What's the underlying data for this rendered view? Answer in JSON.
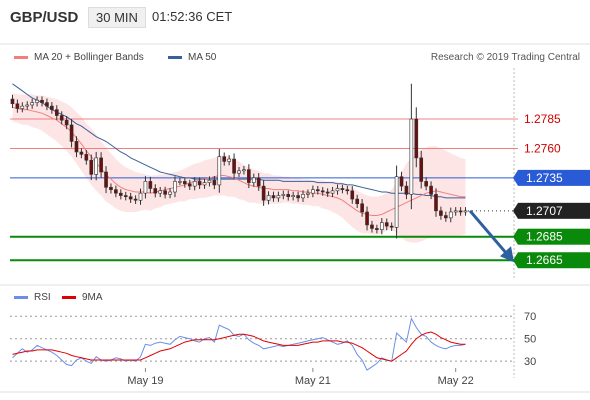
{
  "header": {
    "symbol": "GBP/USD",
    "timeframe": "30 MIN",
    "time": "01:52:36 CET"
  },
  "credit": "Research © 2019 Trading Central",
  "colors": {
    "ma20": "#f08080",
    "ma50": "#3a5f9a",
    "bollinger": "#fde0e0",
    "resistance": "#f08080",
    "pivot": "#2a5bd7",
    "support": "#0a8a0a",
    "rsi": "#6a8fe8",
    "rsi_ma": "#e00000",
    "candle_up": "#ffffff",
    "candle_down": "#6b0f0f"
  },
  "chart_data": [
    {
      "type": "candlestick",
      "legend": [
        {
          "name": "MA 20 + Bollinger Bands",
          "color": "#f08080"
        },
        {
          "name": "MA 50",
          "color": "#3a5f9a"
        }
      ],
      "ylim": [
        1.2655,
        1.2825
      ],
      "x_ticks": [
        "May 19",
        "May 21",
        "May 22"
      ],
      "x_tick_index": [
        27,
        61,
        90
      ],
      "levels": [
        {
          "label": "1.2785",
          "value": 1.2785,
          "kind": "resistance"
        },
        {
          "label": "1.2760",
          "value": 1.276,
          "kind": "resistance"
        },
        {
          "label": "1.2735",
          "value": 1.2735,
          "kind": "pivot"
        },
        {
          "label": "1.2707",
          "value": 1.2707,
          "kind": "last"
        },
        {
          "label": "1.2685",
          "value": 1.2685,
          "kind": "support"
        },
        {
          "label": "1.2665",
          "value": 1.2665,
          "kind": "support"
        }
      ],
      "close": [
        1.2798,
        1.2794,
        1.2796,
        1.2797,
        1.2799,
        1.2801,
        1.2799,
        1.2796,
        1.2793,
        1.2788,
        1.2784,
        1.278,
        1.2766,
        1.2757,
        1.2755,
        1.275,
        1.2738,
        1.2752,
        1.274,
        1.2727,
        1.2725,
        1.2722,
        1.272,
        1.2719,
        1.2717,
        1.2716,
        1.2722,
        1.2732,
        1.2726,
        1.2722,
        1.2724,
        1.2721,
        1.2723,
        1.2732,
        1.2732,
        1.273,
        1.2728,
        1.2732,
        1.2729,
        1.2731,
        1.2733,
        1.2729,
        1.2753,
        1.2749,
        1.2751,
        1.2739,
        1.2741,
        1.2742,
        1.2731,
        1.2735,
        1.2728,
        1.2716,
        1.272,
        1.2718,
        1.272,
        1.2721,
        1.2719,
        1.272,
        1.2718,
        1.2721,
        1.2722,
        1.2725,
        1.2724,
        1.2723,
        1.2722,
        1.2724,
        1.2726,
        1.2725,
        1.2724,
        1.2717,
        1.2713,
        1.2706,
        1.2695,
        1.2692,
        1.2691,
        1.2697,
        1.2694,
        1.2693,
        1.2736,
        1.2728,
        1.2721,
        1.2785,
        1.2752,
        1.2732,
        1.2728,
        1.2721,
        1.2707,
        1.2703,
        1.2701,
        1.2706,
        1.2707,
        1.2706,
        1.2707
      ],
      "ma20": [
        1.2795,
        1.2794,
        1.2793,
        1.2793,
        1.2792,
        1.2791,
        1.279,
        1.2788,
        1.2786,
        1.2784,
        1.2781,
        1.2778,
        1.2774,
        1.2769,
        1.2764,
        1.2758,
        1.2753,
        1.2748,
        1.2743,
        1.2738,
        1.2734,
        1.273,
        1.2727,
        1.2725,
        1.2724,
        1.2723,
        1.2723,
        1.2723,
        1.2722,
        1.2723,
        1.2724,
        1.2725,
        1.2726,
        1.2727,
        1.2728,
        1.2729,
        1.2731,
        1.2732,
        1.2733,
        1.2734,
        1.2735,
        1.2736,
        1.2737,
        1.2737,
        1.2736,
        1.2735,
        1.2733,
        1.2731,
        1.2729,
        1.2728,
        1.2727,
        1.2726,
        1.2726,
        1.2725,
        1.2725,
        1.2725,
        1.2725,
        1.2724,
        1.2724,
        1.2723,
        1.2723,
        1.2722,
        1.2722,
        1.2721,
        1.272,
        1.2719,
        1.2718,
        1.2716,
        1.2713,
        1.271,
        1.2707,
        1.2705,
        1.2704,
        1.2703,
        1.2703,
        1.2704,
        1.2706,
        1.2708,
        1.271,
        1.2712,
        1.2714,
        1.2716,
        1.2718,
        1.272,
        1.2722,
        1.2723,
        1.2724,
        1.2723,
        1.2722,
        1.2721,
        1.272,
        1.2719,
        1.2719
      ],
      "ma50": [
        1.2815,
        1.2812,
        1.2809,
        1.2806,
        1.2803,
        1.2801,
        1.2799,
        1.2796,
        1.2793,
        1.2791,
        1.2789,
        1.2787,
        1.2784,
        1.2781,
        1.2779,
        1.2776,
        1.2773,
        1.277,
        1.2768,
        1.2766,
        1.2763,
        1.276,
        1.2757,
        1.2755,
        1.2752,
        1.275,
        1.2748,
        1.2746,
        1.2744,
        1.2742,
        1.274,
        1.2739,
        1.2738,
        1.2737,
        1.2736,
        1.2735,
        1.2735,
        1.2734,
        1.2734,
        1.2734,
        1.2734,
        1.2734,
        1.2734,
        1.2734,
        1.2734,
        1.2734,
        1.2734,
        1.2734,
        1.2734,
        1.2734,
        1.2734,
        1.2733,
        1.2733,
        1.2733,
        1.2733,
        1.2732,
        1.2732,
        1.2732,
        1.2732,
        1.2732,
        1.2732,
        1.2732,
        1.2731,
        1.2731,
        1.2731,
        1.2731,
        1.273,
        1.273,
        1.2729,
        1.2729,
        1.2728,
        1.2727,
        1.2726,
        1.2725,
        1.2724,
        1.2723,
        1.2723,
        1.2722,
        1.2722,
        1.2722,
        1.2722,
        1.2722,
        1.2721,
        1.2721,
        1.272,
        1.272,
        1.2719,
        1.2719,
        1.2718,
        1.2718,
        1.2718,
        1.2718,
        1.2718
      ],
      "bb_width": [
        0.0012,
        0.0012,
        0.0013,
        0.0013,
        0.0014,
        0.0014,
        0.0015,
        0.0016,
        0.0017,
        0.0018,
        0.0019,
        0.002,
        0.0021,
        0.0022,
        0.0023,
        0.0023,
        0.0024,
        0.0024,
        0.0023,
        0.0023,
        0.0022,
        0.0021,
        0.002,
        0.0019,
        0.0018,
        0.0017,
        0.0016,
        0.0015,
        0.0015,
        0.0014,
        0.0014,
        0.0013,
        0.0013,
        0.0013,
        0.0013,
        0.0014,
        0.0014,
        0.0015,
        0.0015,
        0.0016,
        0.0016,
        0.0016,
        0.0017,
        0.0017,
        0.0017,
        0.0016,
        0.0016,
        0.0015,
        0.0015,
        0.0014,
        0.0014,
        0.0013,
        0.0013,
        0.0012,
        0.0012,
        0.0011,
        0.0011,
        0.0011,
        0.0011,
        0.0011,
        0.0011,
        0.0011,
        0.0011,
        0.0012,
        0.0012,
        0.0013,
        0.0014,
        0.0015,
        0.0016,
        0.0017,
        0.0017,
        0.0017,
        0.0016,
        0.0016,
        0.0016,
        0.0016,
        0.0016,
        0.0017,
        0.0022,
        0.0028,
        0.0033,
        0.0036,
        0.0038,
        0.0039,
        0.0039,
        0.0039,
        0.0038,
        0.0037,
        0.0036,
        0.0035,
        0.0034,
        0.0033,
        0.0032
      ],
      "forecast_arrow": {
        "from": 1.2707,
        "to": 1.2665
      }
    },
    {
      "type": "line",
      "legend": [
        {
          "name": "RSI",
          "color": "#6a8fe8"
        },
        {
          "name": "9MA",
          "color": "#e00000"
        }
      ],
      "ylim": [
        15,
        80
      ],
      "y_ticks": [
        70,
        50,
        30
      ],
      "series": [
        {
          "name": "RSI",
          "values": [
            33,
            37,
            41,
            38,
            40,
            44,
            42,
            40,
            38,
            35,
            31,
            27,
            26,
            31,
            33,
            30,
            28,
            34,
            31,
            30,
            31,
            33,
            32,
            30,
            31,
            30,
            34,
            45,
            44,
            46,
            47,
            46,
            45,
            49,
            52,
            51,
            50,
            48,
            47,
            50,
            51,
            47,
            62,
            60,
            58,
            53,
            52,
            54,
            49,
            46,
            44,
            41,
            42,
            43,
            44,
            43,
            44,
            45,
            46,
            47,
            48,
            49,
            50,
            51,
            49,
            47,
            45,
            46,
            48,
            44,
            36,
            31,
            22,
            25,
            28,
            33,
            31,
            30,
            55,
            51,
            47,
            68,
            60,
            54,
            52,
            47,
            44,
            42,
            41,
            43,
            44,
            44,
            45
          ]
        },
        {
          "name": "9MA",
          "values": [
            36,
            37,
            38,
            39,
            39,
            40,
            40,
            40,
            40,
            39,
            38,
            37,
            35,
            34,
            33,
            32,
            31,
            31,
            31,
            31,
            31,
            31,
            31,
            31,
            31,
            31,
            31,
            33,
            35,
            37,
            39,
            40,
            41,
            43,
            45,
            47,
            48,
            49,
            49,
            49,
            49,
            49,
            50,
            51,
            52,
            53,
            54,
            54,
            53,
            52,
            50,
            48,
            47,
            46,
            45,
            44,
            44,
            44,
            44,
            45,
            46,
            47,
            47,
            48,
            48,
            48,
            48,
            47,
            47,
            46,
            44,
            42,
            39,
            36,
            33,
            32,
            31,
            30,
            33,
            36,
            39,
            45,
            50,
            53,
            55,
            56,
            54,
            51,
            49,
            47,
            46,
            45,
            45
          ]
        }
      ]
    }
  ]
}
